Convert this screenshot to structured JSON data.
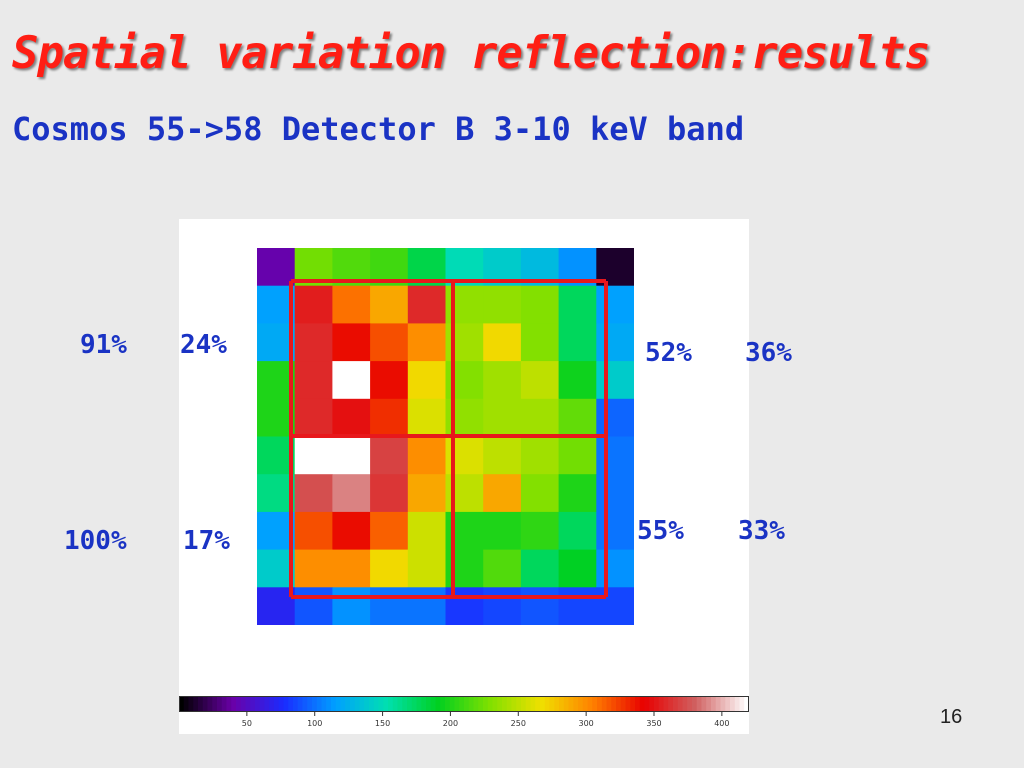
{
  "slide": {
    "title": "Spatial variation reflection:results",
    "subtitle": "Cosmos 55->58 Detector B 3-10 keV band",
    "page_number": "16"
  },
  "labels": {
    "top_left_a": "91%",
    "top_left_b": "24%",
    "top_right_a": "52%",
    "top_right_b": "36%",
    "bottom_left_a": "100%",
    "bottom_left_b": "17%",
    "bottom_right_a": "55%",
    "bottom_right_b": "33%"
  },
  "colors": {
    "title": "#ff1e14",
    "subtitle": "#1a33c4",
    "quadrant_outline": "#e8181c"
  },
  "chart_data": {
    "type": "heatmap",
    "rows": 10,
    "cols": 10,
    "color_scale": {
      "min": 0,
      "max": 420,
      "stops": [
        "#000000",
        "#6a00a8",
        "#1a2cff",
        "#00a0ff",
        "#00e0b0",
        "#00d020",
        "#80e000",
        "#f0e000",
        "#ff8000",
        "#e80000",
        "#d06060",
        "#ffffff"
      ]
    },
    "values": [
      [
        40,
        225,
        215,
        210,
        180,
        150,
        140,
        130,
        110,
        10
      ],
      [
        115,
        355,
        310,
        290,
        360,
        235,
        235,
        230,
        175,
        115
      ],
      [
        120,
        360,
        340,
        320,
        300,
        240,
        270,
        230,
        175,
        120
      ],
      [
        200,
        360,
        420,
        340,
        270,
        230,
        240,
        250,
        195,
        140
      ],
      [
        200,
        360,
        350,
        330,
        260,
        235,
        240,
        240,
        220,
        95
      ],
      [
        175,
        420,
        420,
        370,
        300,
        260,
        250,
        240,
        225,
        100
      ],
      [
        165,
        375,
        390,
        365,
        290,
        250,
        290,
        230,
        200,
        100
      ],
      [
        115,
        320,
        340,
        315,
        255,
        200,
        200,
        205,
        175,
        100
      ],
      [
        140,
        300,
        300,
        270,
        255,
        200,
        215,
        175,
        190,
        110
      ],
      [
        70,
        90,
        110,
        100,
        100,
        80,
        85,
        90,
        85,
        85
      ]
    ],
    "quadrant_labels": [
      {
        "position": "top-left",
        "values": [
          "91%",
          "24%"
        ]
      },
      {
        "position": "top-right",
        "values": [
          "52%",
          "36%"
        ]
      },
      {
        "position": "bottom-left",
        "values": [
          "100%",
          "17%"
        ]
      },
      {
        "position": "bottom-right",
        "values": [
          "55%",
          "33%"
        ]
      }
    ],
    "colorbar": {
      "ticks": [
        50,
        100,
        150,
        200,
        250,
        300,
        350,
        400
      ],
      "tick_labels": [
        "50",
        "100",
        "150",
        "200",
        "250",
        "300",
        "350",
        "400"
      ]
    }
  }
}
